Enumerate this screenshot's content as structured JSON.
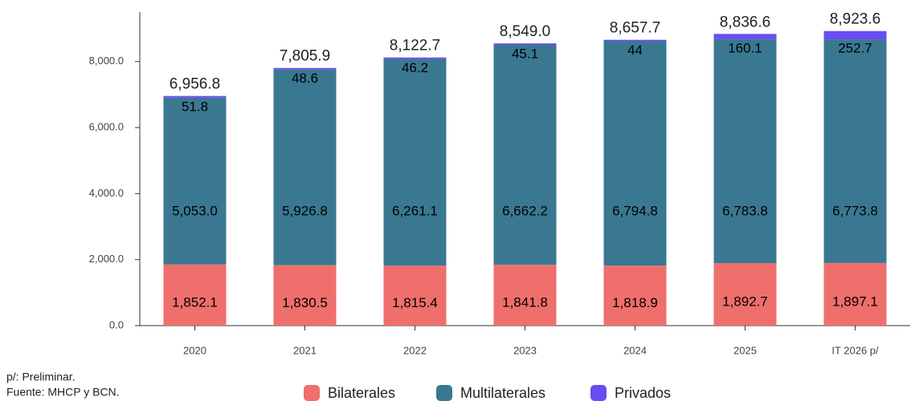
{
  "chart_data": {
    "type": "stacked_bar",
    "categories": [
      "2020",
      "2021",
      "2022",
      "2023",
      "2024",
      "2025",
      "IT 2026 p/"
    ],
    "series": [
      {
        "name": "Bilaterales",
        "color": "#ef6f6c",
        "values": [
          1852.1,
          1830.5,
          1815.4,
          1841.8,
          1818.9,
          1892.7,
          1897.1
        ],
        "value_labels": [
          "1,852.1",
          "1,830.5",
          "1,815.4",
          "1,841.8",
          "1,818.9",
          "1,892.7",
          "1,897.1"
        ]
      },
      {
        "name": "Multilaterales",
        "color": "#3a7891",
        "values": [
          5053.0,
          5926.8,
          6261.1,
          6662.2,
          6794.8,
          6783.8,
          6773.8
        ],
        "value_labels": [
          "5,053.0",
          "5,926.8",
          "6,261.1",
          "6,662.2",
          "6,794.8",
          "6,783.8",
          "6,773.8"
        ]
      },
      {
        "name": "Privados",
        "color": "#6a4cf4",
        "values": [
          51.8,
          48.6,
          46.2,
          45.1,
          44.0,
          160.1,
          252.7
        ]
      }
    ],
    "totals": [
      6956.8,
      7805.9,
      8122.7,
      8549.0,
      8657.7,
      8836.6,
      8923.6
    ],
    "total_labels": [
      "6,956.8",
      "7,805.9",
      "8,122.7",
      "8,549.0",
      "8,657.7",
      "8,836.6",
      "8,923.6"
    ],
    "ylim": [
      0,
      9500
    ],
    "yticks": [
      {
        "value": 0,
        "label": "0.0"
      },
      {
        "value": 2000,
        "label": "2,000.0"
      },
      {
        "value": 4000,
        "label": "4,000.0"
      },
      {
        "value": 6000,
        "label": "6,000.0"
      },
      {
        "value": 8000,
        "label": "8,000.0"
      }
    ],
    "notes": [
      "p/: Preliminar.",
      "Fuente: MHCP y BCN."
    ]
  }
}
